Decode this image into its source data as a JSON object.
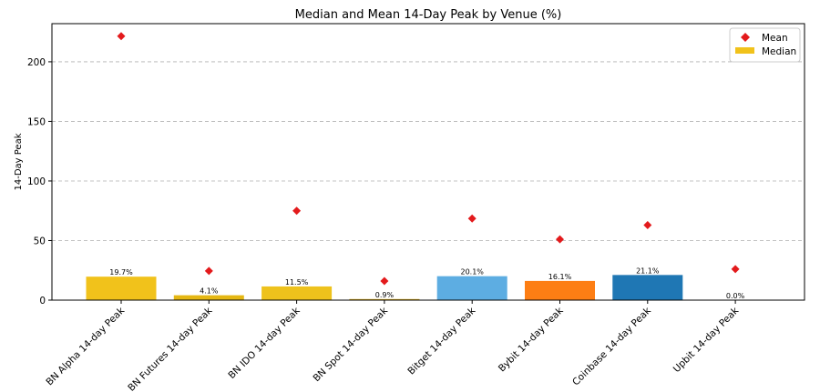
{
  "chart_data": {
    "type": "bar",
    "title": "Median and Mean 14-Day Peak by Venue (%)",
    "xlabel": "",
    "ylabel": "14-Day Peak",
    "ylim": [
      0,
      232
    ],
    "yticks": [
      0,
      50,
      100,
      150,
      200
    ],
    "grid": "horizontal dashed",
    "legend_position": "top-right",
    "categories": [
      "BN Alpha 14-day Peak",
      "BN Futures 14-day Peak",
      "BN IDO 14-day Peak",
      "BN Spot 14-day Peak",
      "Bitget 14-day Peak",
      "Bybit 14-day Peak",
      "Coinbase 14-day Peak",
      "Upbit 14-day Peak"
    ],
    "series": [
      {
        "name": "Median",
        "kind": "bar",
        "values": [
          19.7,
          4.1,
          11.5,
          0.9,
          20.1,
          16.1,
          21.1,
          0.0
        ],
        "labels": [
          "19.7%",
          "4.1%",
          "11.5%",
          "0.9%",
          "20.1%",
          "16.1%",
          "21.1%",
          "0.0%"
        ],
        "colors": [
          "#f1c21b",
          "#e5b713",
          "#eec21c",
          "#d8a70e",
          "#5dade2",
          "#fd7e14",
          "#1f77b4",
          "#f1c21b"
        ]
      },
      {
        "name": "Mean",
        "kind": "marker",
        "marker": "diamond",
        "color": "#e31a1c",
        "values": [
          221.5,
          24.5,
          75.0,
          16.0,
          68.5,
          51.0,
          63.0,
          26.0
        ]
      }
    ]
  }
}
